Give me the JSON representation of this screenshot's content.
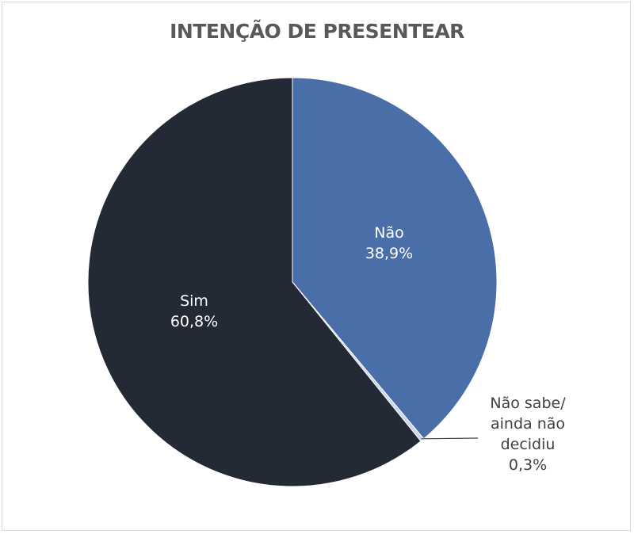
{
  "chart_data": {
    "type": "pie",
    "title": "INTENÇÃO DE PRESENTEAR",
    "slices": [
      {
        "label": "Não",
        "value": 38.9,
        "value_label": "38,9%",
        "color": "#4a6ea8",
        "label_color": "#ffffff"
      },
      {
        "label": "Não sabe/ ainda não decidiu",
        "label_lines": [
          "Não sabe/",
          "ainda não",
          "decidiu"
        ],
        "value": 0.3,
        "value_label": "0,3%",
        "color": "#c6d6ee",
        "label_color": "#404040"
      },
      {
        "label": "Sim",
        "value": 60.8,
        "value_label": "60,8%",
        "color": "#232a35",
        "label_color": "#ffffff"
      }
    ],
    "start": "12 o'clock",
    "direction": "clockwise",
    "legend": "none"
  }
}
